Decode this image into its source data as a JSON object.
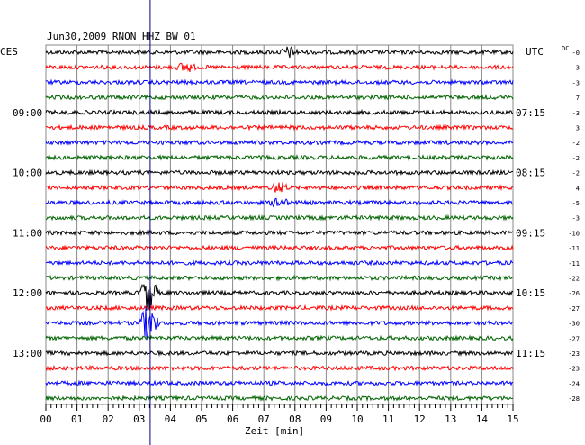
{
  "header": {
    "title": "Jun30,2009   RNON HHZ BW 01",
    "left_zone": "CES",
    "right_zone": "UTC",
    "dc_label": "DC",
    "dc_first": "-0"
  },
  "x_axis": {
    "label": "Zeit [min]",
    "ticks": [
      "00",
      "01",
      "02",
      "03",
      "04",
      "05",
      "06",
      "07",
      "08",
      "09",
      "10",
      "11",
      "12",
      "13",
      "14",
      "15"
    ]
  },
  "colors": {
    "black": "#000000",
    "red": "#ff0000",
    "blue": "#0000ff",
    "green": "#006400",
    "marker": "#00008b"
  },
  "chart_data": {
    "type": "line",
    "title": "Jun30,2009   RNON HHZ BW 01",
    "xlabel": "Zeit [min]",
    "xlim": [
      0,
      15
    ],
    "grid": true,
    "trace_colors_cycle": [
      "black",
      "red",
      "blue",
      "green"
    ],
    "left_time_labels": [
      "09:00",
      "10:00",
      "11:00",
      "12:00",
      "13:00"
    ],
    "right_time_labels": [
      "07:15",
      "08:15",
      "09:15",
      "10:15",
      "11:15"
    ],
    "dc_offsets": [
      "-0",
      "3",
      "-3",
      "7",
      "-3",
      "3",
      "-2",
      "-2",
      "-2",
      "4",
      "-5",
      "-3",
      "-10",
      "-11",
      "-11",
      "-22",
      "-26",
      "-27",
      "-30",
      "-27",
      "-23",
      "-23",
      "-24",
      "-28"
    ],
    "events": [
      {
        "trace": 0,
        "minute": 7.8,
        "amplitude": "medium"
      },
      {
        "trace": 1,
        "minute": 4.5,
        "amplitude": "medium"
      },
      {
        "trace": 9,
        "minute": 7.5,
        "amplitude": "medium"
      },
      {
        "trace": 10,
        "minute": 7.5,
        "amplitude": "medium"
      },
      {
        "trace": 16,
        "minute": 3.3,
        "amplitude": "high"
      },
      {
        "trace": 18,
        "minute": 3.3,
        "amplitude": "high"
      }
    ],
    "current_time_marker_minute": 3.35
  }
}
